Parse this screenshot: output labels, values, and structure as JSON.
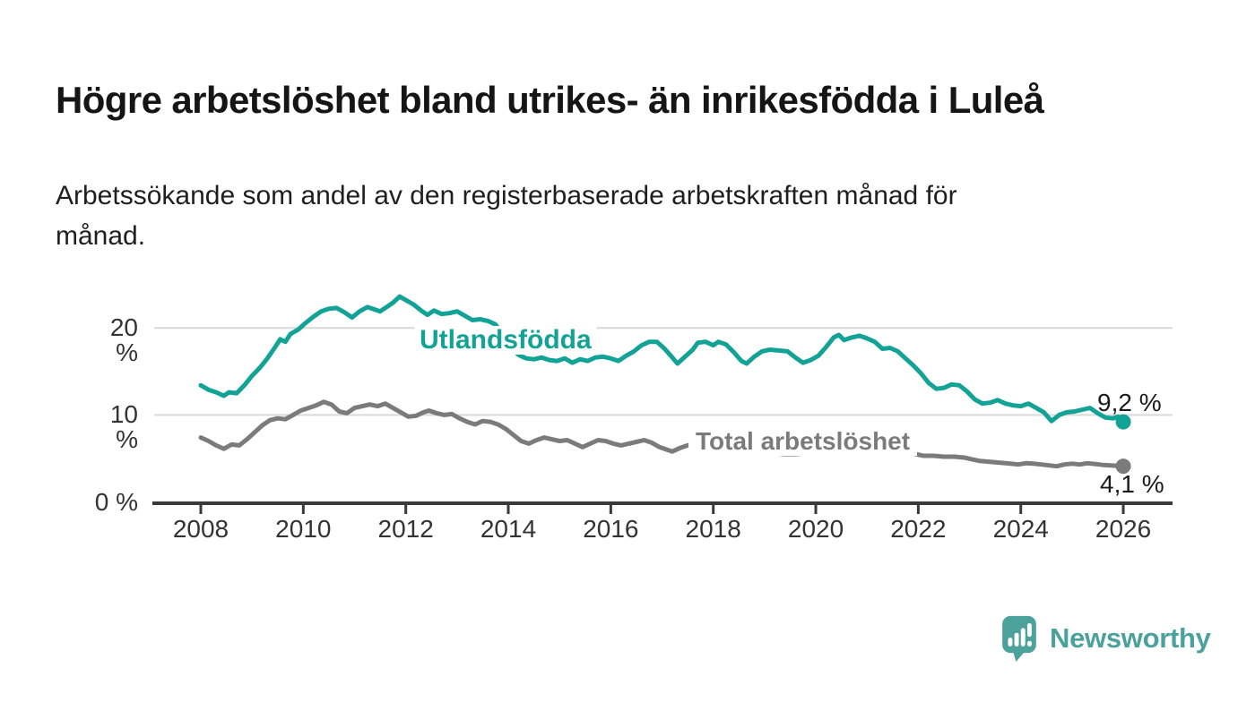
{
  "header": {
    "title": "Högre arbetslöshet bland utrikes- än inrikesfödda i Luleå",
    "subtitle_line1": "Arbetssökande som andel av den registerbaserade arbetskraften månad för",
    "subtitle_line2": "månad."
  },
  "chart_data": {
    "type": "line",
    "unit": "%",
    "grid": true,
    "x_range": [
      2008,
      2026
    ],
    "y_range": [
      0,
      25
    ],
    "x_ticks": [
      2008,
      2010,
      2012,
      2014,
      2016,
      2018,
      2020,
      2022,
      2024,
      2026
    ],
    "y_ticks": [
      {
        "value": 20,
        "label": "20 %"
      },
      {
        "value": 10,
        "label": "10 %"
      },
      {
        "value": 0,
        "label": "0 %"
      }
    ],
    "series": [
      {
        "name": "Utlandsfödda",
        "color": "#13a296",
        "end_label": "9,2 %",
        "end_value": 9.2,
        "points": [
          [
            2008.0,
            13.4
          ],
          [
            2008.15,
            12.9
          ],
          [
            2008.3,
            12.6
          ],
          [
            2008.45,
            12.2
          ],
          [
            2008.55,
            12.6
          ],
          [
            2008.7,
            12.5
          ],
          [
            2008.85,
            13.4
          ],
          [
            2009.0,
            14.5
          ],
          [
            2009.15,
            15.4
          ],
          [
            2009.3,
            16.5
          ],
          [
            2009.45,
            17.8
          ],
          [
            2009.55,
            18.7
          ],
          [
            2009.65,
            18.4
          ],
          [
            2009.75,
            19.3
          ],
          [
            2009.9,
            19.8
          ],
          [
            2010.05,
            20.6
          ],
          [
            2010.2,
            21.3
          ],
          [
            2010.35,
            21.9
          ],
          [
            2010.5,
            22.2
          ],
          [
            2010.65,
            22.3
          ],
          [
            2010.8,
            21.8
          ],
          [
            2010.95,
            21.2
          ],
          [
            2011.1,
            21.9
          ],
          [
            2011.25,
            22.4
          ],
          [
            2011.4,
            22.1
          ],
          [
            2011.5,
            21.9
          ],
          [
            2011.65,
            22.5
          ],
          [
            2011.75,
            22.9
          ],
          [
            2011.88,
            23.6
          ],
          [
            2012.0,
            23.2
          ],
          [
            2012.15,
            22.7
          ],
          [
            2012.3,
            22.0
          ],
          [
            2012.42,
            21.5
          ],
          [
            2012.55,
            22.0
          ],
          [
            2012.7,
            21.6
          ],
          [
            2012.85,
            21.7
          ],
          [
            2013.0,
            21.9
          ],
          [
            2013.15,
            21.4
          ],
          [
            2013.3,
            20.9
          ],
          [
            2013.45,
            21.0
          ],
          [
            2013.6,
            20.8
          ],
          [
            2013.75,
            20.4
          ],
          [
            2013.9,
            19.2
          ],
          [
            2014.05,
            17.7
          ],
          [
            2014.2,
            16.9
          ],
          [
            2014.35,
            16.5
          ],
          [
            2014.5,
            16.4
          ],
          [
            2014.65,
            16.6
          ],
          [
            2014.8,
            16.3
          ],
          [
            2014.95,
            16.2
          ],
          [
            2015.1,
            16.5
          ],
          [
            2015.25,
            16.0
          ],
          [
            2015.4,
            16.4
          ],
          [
            2015.55,
            16.2
          ],
          [
            2015.7,
            16.6
          ],
          [
            2015.85,
            16.7
          ],
          [
            2016.0,
            16.5
          ],
          [
            2016.15,
            16.2
          ],
          [
            2016.3,
            16.8
          ],
          [
            2016.45,
            17.3
          ],
          [
            2016.6,
            18.0
          ],
          [
            2016.75,
            18.4
          ],
          [
            2016.9,
            18.4
          ],
          [
            2017.05,
            17.6
          ],
          [
            2017.2,
            16.6
          ],
          [
            2017.3,
            15.9
          ],
          [
            2017.45,
            16.7
          ],
          [
            2017.6,
            17.5
          ],
          [
            2017.7,
            18.3
          ],
          [
            2017.85,
            18.4
          ],
          [
            2018.0,
            18.0
          ],
          [
            2018.1,
            18.4
          ],
          [
            2018.25,
            18.1
          ],
          [
            2018.4,
            17.2
          ],
          [
            2018.55,
            16.2
          ],
          [
            2018.65,
            15.9
          ],
          [
            2018.8,
            16.7
          ],
          [
            2018.95,
            17.3
          ],
          [
            2019.1,
            17.5
          ],
          [
            2019.3,
            17.4
          ],
          [
            2019.45,
            17.3
          ],
          [
            2019.6,
            16.6
          ],
          [
            2019.75,
            16.0
          ],
          [
            2019.9,
            16.3
          ],
          [
            2020.05,
            16.8
          ],
          [
            2020.2,
            17.8
          ],
          [
            2020.35,
            18.9
          ],
          [
            2020.45,
            19.2
          ],
          [
            2020.55,
            18.6
          ],
          [
            2020.7,
            18.9
          ],
          [
            2020.85,
            19.1
          ],
          [
            2021.0,
            18.8
          ],
          [
            2021.15,
            18.4
          ],
          [
            2021.3,
            17.6
          ],
          [
            2021.45,
            17.7
          ],
          [
            2021.6,
            17.3
          ],
          [
            2021.75,
            16.5
          ],
          [
            2021.9,
            15.7
          ],
          [
            2022.05,
            14.8
          ],
          [
            2022.2,
            13.7
          ],
          [
            2022.35,
            13.0
          ],
          [
            2022.5,
            13.1
          ],
          [
            2022.65,
            13.5
          ],
          [
            2022.8,
            13.4
          ],
          [
            2022.95,
            12.7
          ],
          [
            2023.1,
            11.8
          ],
          [
            2023.25,
            11.3
          ],
          [
            2023.4,
            11.4
          ],
          [
            2023.55,
            11.7
          ],
          [
            2023.7,
            11.3
          ],
          [
            2023.85,
            11.1
          ],
          [
            2024.0,
            11.0
          ],
          [
            2024.15,
            11.3
          ],
          [
            2024.3,
            10.8
          ],
          [
            2024.45,
            10.3
          ],
          [
            2024.6,
            9.3
          ],
          [
            2024.75,
            10.0
          ],
          [
            2024.9,
            10.3
          ],
          [
            2025.05,
            10.4
          ],
          [
            2025.2,
            10.6
          ],
          [
            2025.35,
            10.8
          ],
          [
            2025.5,
            10.2
          ],
          [
            2025.65,
            9.7
          ],
          [
            2025.8,
            9.6
          ],
          [
            2025.9,
            9.8
          ],
          [
            2026.0,
            9.2
          ]
        ]
      },
      {
        "name": "Total arbetslöshet",
        "color": "#7b7b7b",
        "end_label": "4,1 %",
        "end_value": 4.1,
        "points": [
          [
            2008.0,
            7.4
          ],
          [
            2008.15,
            7.0
          ],
          [
            2008.3,
            6.5
          ],
          [
            2008.45,
            6.1
          ],
          [
            2008.6,
            6.6
          ],
          [
            2008.75,
            6.5
          ],
          [
            2008.9,
            7.2
          ],
          [
            2009.05,
            8.0
          ],
          [
            2009.2,
            8.8
          ],
          [
            2009.35,
            9.4
          ],
          [
            2009.5,
            9.6
          ],
          [
            2009.65,
            9.5
          ],
          [
            2009.8,
            10.0
          ],
          [
            2009.95,
            10.5
          ],
          [
            2010.1,
            10.8
          ],
          [
            2010.25,
            11.1
          ],
          [
            2010.4,
            11.5
          ],
          [
            2010.55,
            11.2
          ],
          [
            2010.7,
            10.4
          ],
          [
            2010.85,
            10.2
          ],
          [
            2011.0,
            10.8
          ],
          [
            2011.15,
            11.0
          ],
          [
            2011.3,
            11.2
          ],
          [
            2011.45,
            11.0
          ],
          [
            2011.6,
            11.3
          ],
          [
            2011.75,
            10.8
          ],
          [
            2011.9,
            10.3
          ],
          [
            2012.05,
            9.8
          ],
          [
            2012.2,
            9.9
          ],
          [
            2012.35,
            10.3
          ],
          [
            2012.45,
            10.5
          ],
          [
            2012.6,
            10.2
          ],
          [
            2012.75,
            10.0
          ],
          [
            2012.9,
            10.1
          ],
          [
            2013.05,
            9.6
          ],
          [
            2013.2,
            9.2
          ],
          [
            2013.35,
            8.9
          ],
          [
            2013.5,
            9.3
          ],
          [
            2013.65,
            9.2
          ],
          [
            2013.8,
            8.9
          ],
          [
            2013.95,
            8.4
          ],
          [
            2014.1,
            7.7
          ],
          [
            2014.25,
            7.0
          ],
          [
            2014.4,
            6.7
          ],
          [
            2014.55,
            7.1
          ],
          [
            2014.7,
            7.4
          ],
          [
            2014.85,
            7.2
          ],
          [
            2015.0,
            7.0
          ],
          [
            2015.15,
            7.1
          ],
          [
            2015.3,
            6.7
          ],
          [
            2015.45,
            6.3
          ],
          [
            2015.6,
            6.7
          ],
          [
            2015.75,
            7.1
          ],
          [
            2015.9,
            7.0
          ],
          [
            2016.05,
            6.7
          ],
          [
            2016.2,
            6.5
          ],
          [
            2016.35,
            6.7
          ],
          [
            2016.5,
            6.9
          ],
          [
            2016.65,
            7.1
          ],
          [
            2016.8,
            6.8
          ],
          [
            2016.95,
            6.3
          ],
          [
            2017.1,
            6.0
          ],
          [
            2017.2,
            5.8
          ],
          [
            2017.35,
            6.2
          ],
          [
            2017.5,
            6.5
          ],
          [
            2017.65,
            6.6
          ],
          [
            2017.8,
            6.4
          ],
          [
            2018.0,
            6.2
          ],
          [
            2018.2,
            6.1
          ],
          [
            2018.4,
            5.9
          ],
          [
            2018.6,
            5.8
          ],
          [
            2018.8,
            5.7
          ],
          [
            2019.0,
            5.7
          ],
          [
            2019.2,
            5.6
          ],
          [
            2019.4,
            5.5
          ],
          [
            2019.6,
            5.5
          ],
          [
            2019.8,
            5.6
          ],
          [
            2020.0,
            5.9
          ],
          [
            2020.2,
            6.6
          ],
          [
            2020.4,
            7.1
          ],
          [
            2020.6,
            7.3
          ],
          [
            2020.8,
            7.2
          ],
          [
            2021.0,
            7.0
          ],
          [
            2021.2,
            6.7
          ],
          [
            2021.4,
            6.4
          ],
          [
            2021.6,
            6.1
          ],
          [
            2021.8,
            5.8
          ],
          [
            2021.95,
            5.5
          ],
          [
            2022.1,
            5.3
          ],
          [
            2022.3,
            5.3
          ],
          [
            2022.5,
            5.2
          ],
          [
            2022.7,
            5.2
          ],
          [
            2022.9,
            5.1
          ],
          [
            2023.05,
            4.9
          ],
          [
            2023.2,
            4.7
          ],
          [
            2023.4,
            4.6
          ],
          [
            2023.6,
            4.5
          ],
          [
            2023.8,
            4.4
          ],
          [
            2023.95,
            4.3
          ],
          [
            2024.1,
            4.45
          ],
          [
            2024.25,
            4.4
          ],
          [
            2024.4,
            4.3
          ],
          [
            2024.55,
            4.2
          ],
          [
            2024.7,
            4.1
          ],
          [
            2024.85,
            4.3
          ],
          [
            2025.0,
            4.4
          ],
          [
            2025.15,
            4.3
          ],
          [
            2025.3,
            4.45
          ],
          [
            2025.45,
            4.35
          ],
          [
            2025.6,
            4.25
          ],
          [
            2025.75,
            4.2
          ],
          [
            2025.9,
            4.15
          ],
          [
            2026.0,
            4.1
          ]
        ]
      }
    ]
  },
  "branding": {
    "name": "Newsworthy",
    "color": "#4ba19b"
  },
  "colors": {
    "grid": "#d9d9d9",
    "axis": "#3a3a3a",
    "tick_text": "#333333",
    "text": "#1a1a1a",
    "background": "#ffffff"
  }
}
